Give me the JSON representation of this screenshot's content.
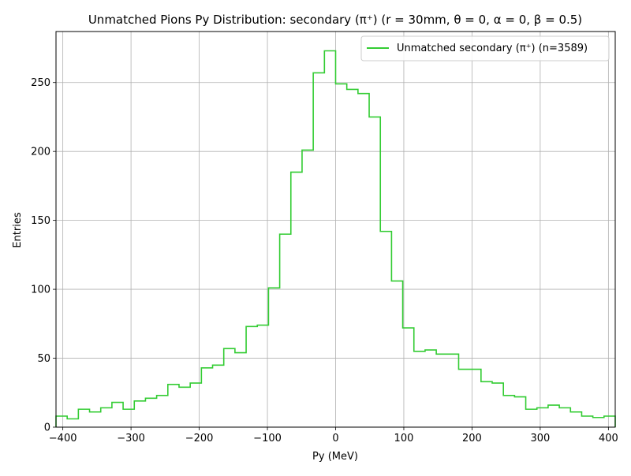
{
  "chart_data": {
    "type": "histogram-step",
    "title": "Unmatched Pions Py Distribution: secondary (π⁺) (r = 30mm, θ = 0, α = 0, β = 0.5)",
    "xlabel": "Py (MeV)",
    "ylabel": "Entries",
    "xlim": [
      -410,
      410
    ],
    "ylim": [
      0,
      287
    ],
    "xticks": [
      -400,
      -300,
      -200,
      -100,
      0,
      100,
      200,
      300,
      400
    ],
    "xtick_labels": [
      "−400",
      "−300",
      "−200",
      "−100",
      "0",
      "100",
      "200",
      "300",
      "400"
    ],
    "yticks": [
      0,
      50,
      100,
      150,
      200,
      250
    ],
    "ytick_labels": [
      "0",
      "50",
      "100",
      "150",
      "200",
      "250"
    ],
    "grid": true,
    "legend_position": "top-right",
    "color": "#33cc33",
    "series": [
      {
        "name": "Unmatched secondary (π⁺) (n=3589)",
        "bin_edges": [
          -410,
          -393.6,
          -377.2,
          -360.8,
          -344.4,
          -328,
          -311.6,
          -295.2,
          -278.8,
          -262.4,
          -246,
          -229.6,
          -213.2,
          -196.8,
          -180.4,
          -164,
          -147.6,
          -131.2,
          -114.8,
          -98.4,
          -82,
          -65.6,
          -49.2,
          -32.8,
          -16.4,
          0,
          16.4,
          32.8,
          49.2,
          65.6,
          82,
          98.4,
          114.8,
          131.2,
          147.6,
          164,
          180.4,
          196.8,
          213.2,
          229.6,
          246,
          262.4,
          278.8,
          295.2,
          311.6,
          328,
          344.4,
          360.8,
          377.2,
          393.6,
          410
        ],
        "counts": [
          8,
          6,
          13,
          11,
          14,
          18,
          13,
          19,
          21,
          23,
          31,
          29,
          32,
          43,
          45,
          57,
          54,
          73,
          74,
          101,
          140,
          185,
          201,
          257,
          273,
          249,
          245,
          242,
          225,
          142,
          106,
          72,
          55,
          56,
          53,
          53,
          42,
          42,
          33,
          32,
          23,
          22,
          13,
          14,
          16,
          14,
          11,
          8,
          7,
          8
        ]
      }
    ]
  }
}
